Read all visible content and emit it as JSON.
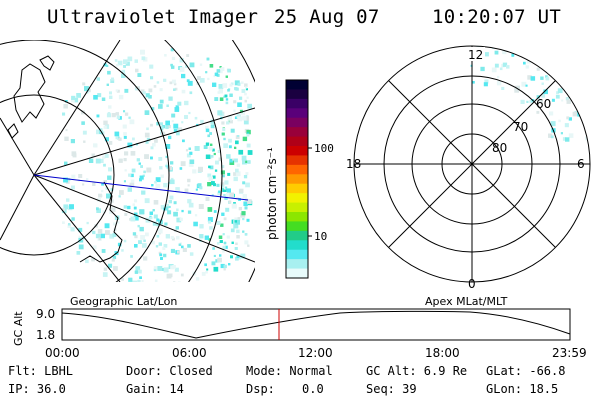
{
  "header": {
    "instrument": "Ultraviolet Imager",
    "date": "25 Aug 07",
    "time": "10:20:07 UT"
  },
  "left_panel": {
    "caption": "Geographic Lat/Lon"
  },
  "right_panel": {
    "caption": "Apex MLat/MLT",
    "mlt_labels": [
      "12",
      "18",
      "6",
      "0"
    ],
    "lat_labels": [
      "60",
      "70",
      "80"
    ]
  },
  "colorbar": {
    "unit_label": "photon cm⁻²s⁻¹",
    "ticks": [
      "100",
      "10"
    ],
    "colors": [
      "#000033",
      "#1a0040",
      "#3a0066",
      "#5a007a",
      "#7a0060",
      "#99003a",
      "#b00018",
      "#cc0000",
      "#e63300",
      "#ff6600",
      "#ff9900",
      "#ffcc00",
      "#f2f200",
      "#c8f000",
      "#8ce600",
      "#44dd22",
      "#22cc88",
      "#22ddcc",
      "#55e8f0",
      "#a8f0f0",
      "#e8fbfb"
    ]
  },
  "altitude_plot": {
    "ylabel": "GC Alt",
    "yticks": [
      "9.0",
      "1.8"
    ],
    "xticks": [
      "00:00",
      "06:00",
      "12:00",
      "18:00",
      "23:59"
    ]
  },
  "info": {
    "flt": "Flt: LBHL",
    "ip": "IP: 36.0",
    "door": "Door: Closed",
    "gain": "Gain: 14",
    "mode": "Mode: Normal",
    "dsp_label": "Dsp:",
    "dsp_value": "0.0",
    "gc_alt": "GC Alt: 6.9 Re",
    "seq": "Seq: 39",
    "glat": "GLat: -66.8",
    "glon": "GLon:  18.5"
  }
}
